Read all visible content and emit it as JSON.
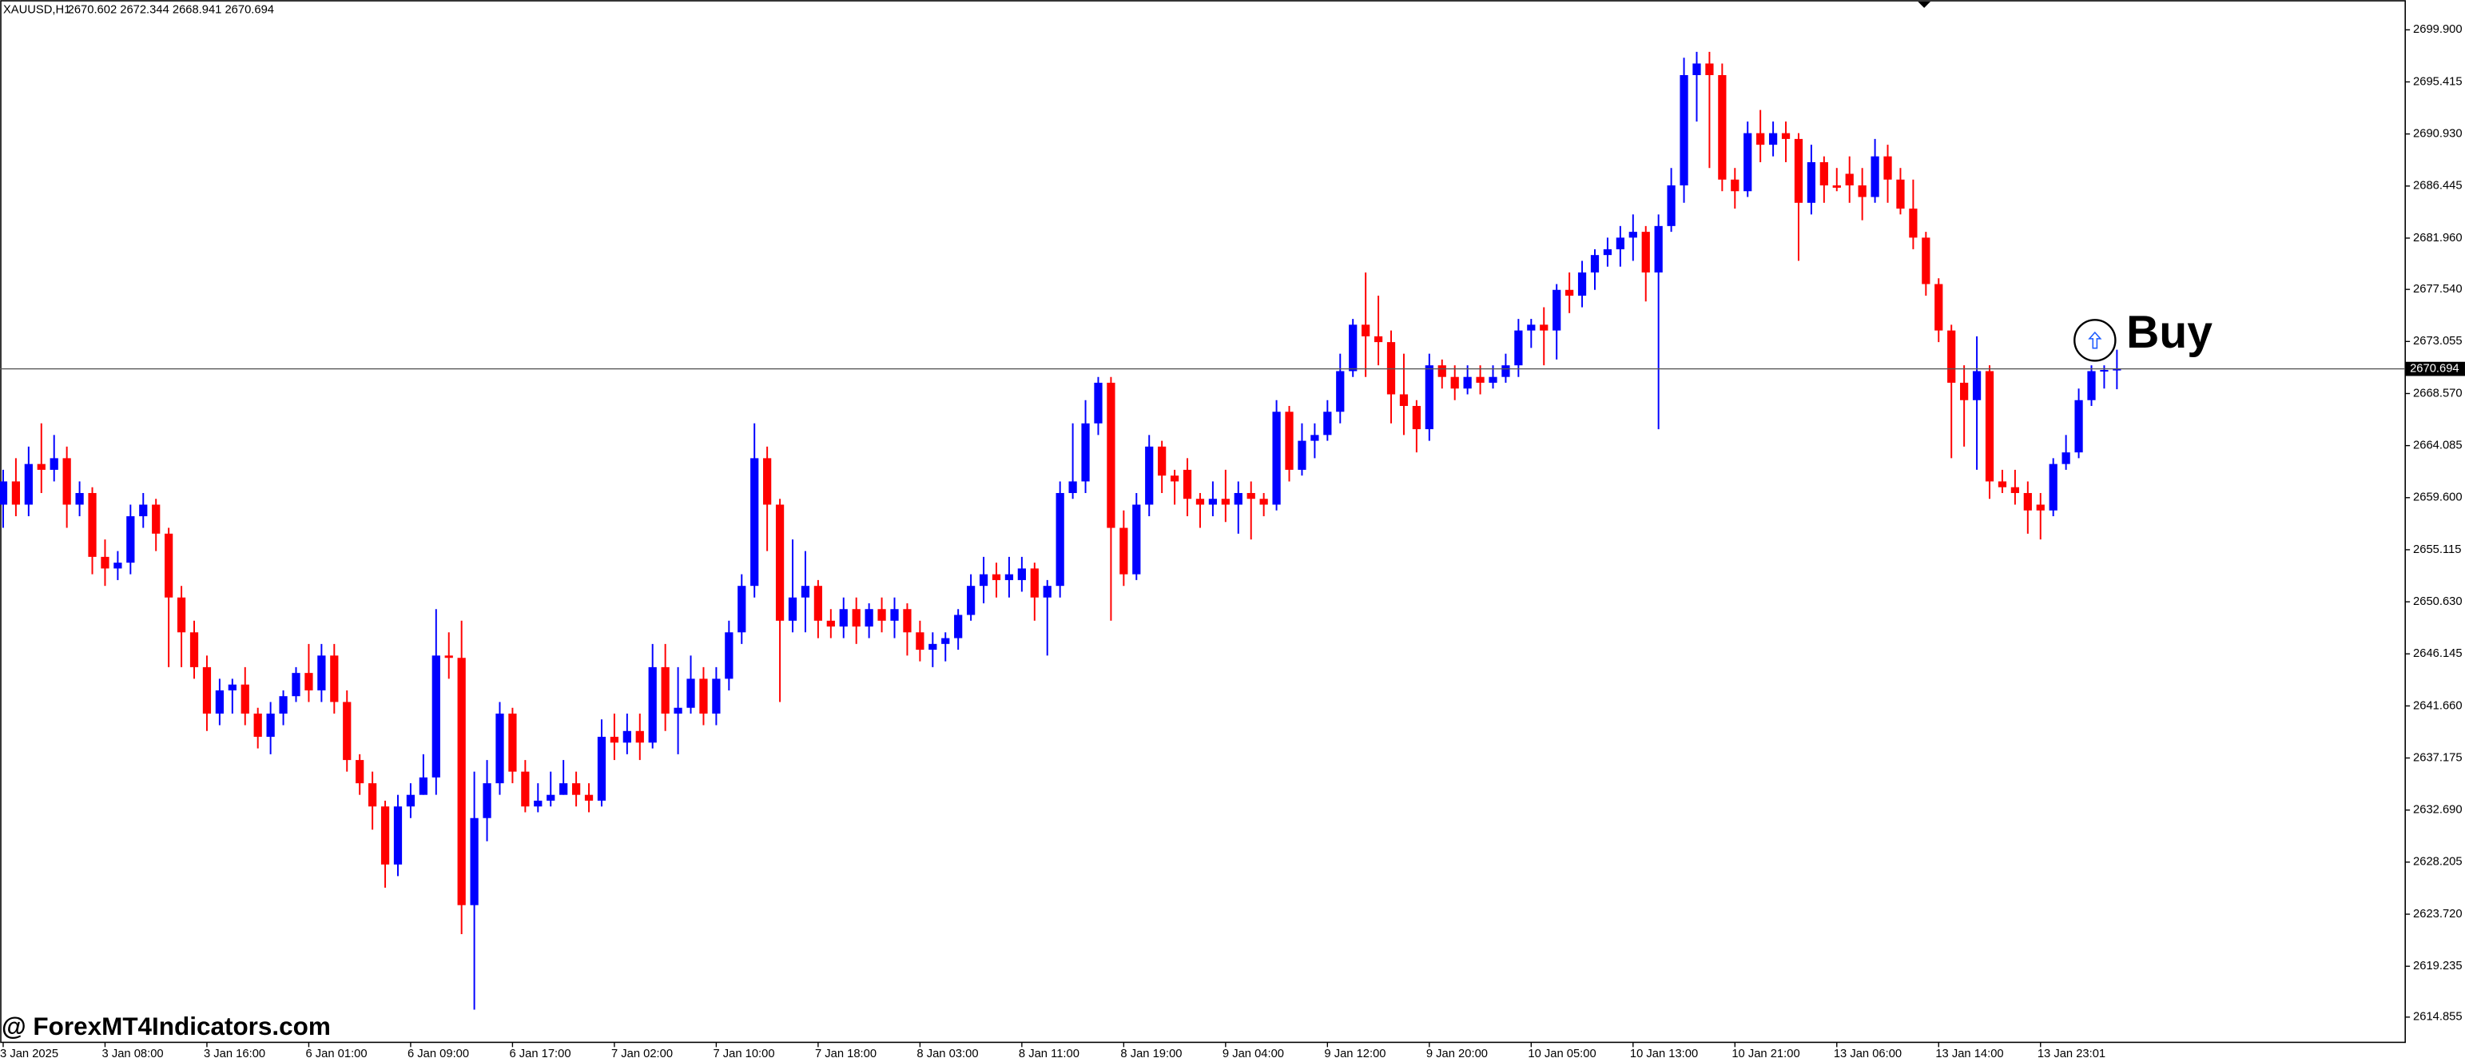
{
  "chart_data": {
    "type": "candlestick",
    "title": "XAUUSD,H1",
    "subtitle": "2670.602 2672.344 2668.941 2670.694",
    "watermark": "@ ForexMT4Indicators.com",
    "annotations": [
      {
        "text": "Buy"
      }
    ],
    "up_color": "#0000ff",
    "down_color": "#ff0000",
    "categories": [
      "3 Jan 2025",
      null,
      null,
      null,
      null,
      null,
      null,
      null,
      "3 Jan 08:00",
      null,
      null,
      null,
      null,
      null,
      null,
      null,
      "3 Jan 16:00",
      null,
      null,
      null,
      null,
      null,
      null,
      null,
      "6 Jan 01:00",
      null,
      null,
      null,
      null,
      null,
      null,
      null,
      "6 Jan 09:00",
      null,
      null,
      null,
      null,
      null,
      null,
      null,
      "6 Jan 17:00",
      null,
      null,
      null,
      null,
      null,
      null,
      null,
      "7 Jan 02:00",
      null,
      null,
      null,
      null,
      null,
      null,
      null,
      "7 Jan 10:00",
      null,
      null,
      null,
      null,
      null,
      null,
      null,
      "7 Jan 18:00",
      null,
      null,
      null,
      null,
      null,
      null,
      null,
      "8 Jan 03:00",
      null,
      null,
      null,
      null,
      null,
      null,
      null,
      "8 Jan 11:00",
      null,
      null,
      null,
      null,
      null,
      null,
      null,
      "8 Jan 19:00",
      null,
      null,
      null,
      null,
      null,
      null,
      null,
      "9 Jan 04:00",
      null,
      null,
      null,
      null,
      null,
      null,
      null,
      "9 Jan 12:00",
      null,
      null,
      null,
      null,
      null,
      null,
      null,
      "9 Jan 20:00",
      null,
      null,
      null,
      null,
      null,
      null,
      null,
      "10 Jan 05:00",
      null,
      null,
      null,
      null,
      null,
      null,
      null,
      "10 Jan 13:00",
      null,
      null,
      null,
      null,
      null,
      null,
      null,
      "10 Jan 21:00",
      null,
      null,
      null,
      null,
      null,
      null,
      null,
      "13 Jan 06:00",
      null,
      null,
      null,
      null,
      null,
      null,
      null,
      "13 Jan 14:00",
      null,
      null,
      null,
      null,
      null,
      null,
      null,
      "13 Jan 23:01",
      null,
      null,
      null,
      null,
      null,
      null
    ],
    "open": [
      2659,
      2661,
      2659,
      2662.5,
      2662,
      2663,
      2659,
      2660,
      2654.5,
      2653.5,
      2654,
      2658,
      2659,
      2656.5,
      2651,
      2648,
      2645,
      2641,
      2643,
      2643.5,
      2641,
      2639,
      2641,
      2642.5,
      2644.5,
      2643,
      2646,
      2642,
      2637,
      2635,
      2633,
      2628,
      2633,
      2634,
      2635.5,
      2646,
      2645.8,
      2624.5,
      2632,
      2635,
      2641,
      2636,
      2633,
      2633.5,
      2634,
      2635,
      2634,
      2633.5,
      2639,
      2638.5,
      2639.5,
      2638.5,
      2645,
      2641,
      2641.5,
      2644,
      2641,
      2644,
      2648,
      2652,
      2663,
      2659,
      2649,
      2651,
      2652,
      2649,
      2648.5,
      2650,
      2648.5,
      2650,
      2649,
      2650,
      2648,
      2646.5,
      2647,
      2647.5,
      2649.5,
      2652,
      2653,
      2652.5,
      2652.5,
      2653.5,
      2651,
      2652,
      2660,
      2661,
      2666,
      2669.5,
      2657,
      2653,
      2659,
      2664,
      2661.5,
      2662,
      2659.5,
      2659,
      2659.5,
      2659,
      2660,
      2659.5,
      2659,
      2667,
      2662,
      2664.5,
      2665,
      2667,
      2670.5,
      2674.5,
      2673.5,
      2673,
      2668.5,
      2667.5,
      2665.5,
      2671,
      2670,
      2669,
      2670,
      2669.5,
      2670,
      2671,
      2674,
      2674.5,
      2674,
      2677.5,
      2677,
      2679,
      2680.5,
      2681,
      2682,
      2682.5,
      2679,
      2683,
      2686.5,
      2696,
      2697,
      2696,
      2687,
      2686,
      2691,
      2690,
      2691,
      2690.5,
      2685,
      2688.5,
      2686.5,
      2687.5,
      2686.5,
      2685.5,
      2689,
      2687,
      2684.5,
      2682,
      2678,
      2674,
      2669.5,
      2668,
      2670.5,
      2661,
      2660.5,
      2660,
      2659,
      2658.5,
      2662.5,
      2663.5,
      2668,
      2670.5,
      2670.602
    ],
    "high": [
      2662,
      2663,
      2664,
      2666,
      2665,
      2664,
      2661,
      2660.5,
      2656,
      2655,
      2659,
      2660,
      2659.5,
      2657,
      2652,
      2649,
      2646,
      2644,
      2644,
      2645,
      2641.5,
      2642,
      2643,
      2645,
      2647,
      2647,
      2647,
      2643,
      2637.5,
      2636,
      2633.5,
      2634,
      2635,
      2637.5,
      2650,
      2648,
      2649,
      2636,
      2637,
      2642,
      2641.5,
      2637,
      2635,
      2636,
      2637,
      2636,
      2635,
      2640.5,
      2641,
      2641,
      2641,
      2647,
      2647,
      2645,
      2646,
      2645,
      2645,
      2649,
      2653,
      2666,
      2664,
      2659.5,
      2656,
      2655,
      2652.5,
      2650,
      2651,
      2651,
      2650.5,
      2651,
      2651,
      2650.5,
      2649,
      2648,
      2648,
      2650,
      2653,
      2654.5,
      2654,
      2654.5,
      2654.5,
      2654,
      2652.5,
      2661,
      2666,
      2668,
      2670,
      2670,
      2658.5,
      2660,
      2665,
      2664.5,
      2662,
      2663,
      2660,
      2661,
      2662,
      2661,
      2661,
      2660,
      2668,
      2667.5,
      2666,
      2666,
      2668,
      2672,
      2675,
      2679,
      2677,
      2674,
      2672,
      2668,
      2672,
      2671.5,
      2671,
      2671,
      2671,
      2671,
      2672,
      2675,
      2675,
      2676,
      2678,
      2679,
      2680,
      2681,
      2682,
      2683,
      2684,
      2683,
      2684,
      2688,
      2697.5,
      2698,
      2698,
      2697,
      2688,
      2692,
      2693,
      2692,
      2692,
      2691,
      2690,
      2689,
      2688,
      2689,
      2688,
      2690.5,
      2690,
      2688,
      2687,
      2682.5,
      2678.5,
      2674.5,
      2671,
      2673.5,
      2671,
      2662,
      2662,
      2661,
      2660,
      2663,
      2665,
      2669,
      2671,
      2671,
      2672.344
    ],
    "low": [
      2657,
      2658,
      2658,
      2660,
      2661,
      2657,
      2658,
      2653,
      2652,
      2652.5,
      2653,
      2657,
      2655,
      2645,
      2645,
      2644,
      2639.5,
      2640,
      2641,
      2640,
      2638,
      2637.5,
      2640,
      2642,
      2642,
      2642,
      2641,
      2636,
      2634,
      2631,
      2626,
      2627,
      2632,
      2634,
      2634,
      2644,
      2622,
      2615.5,
      2630,
      2634,
      2635,
      2632.5,
      2632.5,
      2633,
      2634,
      2633,
      2632.5,
      2633,
      2637,
      2637.5,
      2637,
      2638,
      2639.5,
      2637.5,
      2641,
      2640,
      2640,
      2643,
      2647,
      2651,
      2655,
      2642,
      2648,
      2648,
      2647.5,
      2647.5,
      2647.5,
      2647,
      2647.5,
      2648,
      2647.5,
      2646,
      2645.5,
      2645,
      2645.5,
      2646.5,
      2649,
      2650.5,
      2651,
      2651,
      2651.5,
      2649,
      2646,
      2651,
      2659.5,
      2660,
      2665,
      2649,
      2652,
      2652.5,
      2658,
      2660,
      2659,
      2658,
      2657,
      2658,
      2657.5,
      2656.5,
      2656,
      2658,
      2658.5,
      2661,
      2661.5,
      2663,
      2664.5,
      2666,
      2670,
      2670,
      2671,
      2666,
      2665,
      2663.5,
      2664.5,
      2669,
      2668,
      2668.5,
      2668.5,
      2669,
      2669.5,
      2670,
      2672.5,
      2671,
      2671.5,
      2675.5,
      2676,
      2677.5,
      2679.5,
      2679.5,
      2680,
      2676.5,
      2665.5,
      2682.5,
      2685,
      2692,
      2688,
      2686,
      2684.5,
      2685.5,
      2688.5,
      2689,
      2688.5,
      2680,
      2684,
      2685,
      2686,
      2685,
      2683.5,
      2685,
      2685,
      2684,
      2681,
      2677,
      2673,
      2663,
      2664,
      2662,
      2659.5,
      2660,
      2659,
      2656.5,
      2656,
      2658,
      2662,
      2663,
      2667.5,
      2669,
      2668.941
    ],
    "close": [
      2661,
      2659,
      2662.5,
      2662,
      2663,
      2659,
      2660,
      2654.5,
      2653.5,
      2654,
      2658,
      2659,
      2656.5,
      2651,
      2648,
      2645,
      2641,
      2643,
      2643.5,
      2641,
      2639,
      2641,
      2642.5,
      2644.5,
      2643,
      2646,
      2642,
      2637,
      2635,
      2633,
      2628,
      2633,
      2634,
      2635.5,
      2646,
      2645.8,
      2624.5,
      2632,
      2635,
      2641,
      2636,
      2633,
      2633.5,
      2634,
      2635,
      2634,
      2633.5,
      2639,
      2638.5,
      2639.5,
      2638.5,
      2645,
      2641,
      2641.5,
      2644,
      2641,
      2644,
      2648,
      2652,
      2663,
      2659,
      2649,
      2651,
      2652,
      2649,
      2648.5,
      2650,
      2648.5,
      2650,
      2649,
      2650,
      2648,
      2646.5,
      2647,
      2647.5,
      2649.5,
      2652,
      2653,
      2652.5,
      2653,
      2653.5,
      2651,
      2652,
      2660,
      2661,
      2666,
      2669.5,
      2657,
      2653,
      2659,
      2664,
      2661.5,
      2661,
      2659.5,
      2659,
      2659.5,
      2659,
      2660,
      2659.5,
      2659,
      2667,
      2662,
      2664.5,
      2665,
      2667,
      2670.5,
      2674.5,
      2673.5,
      2673,
      2668.5,
      2667.5,
      2665.5,
      2671,
      2670,
      2669,
      2670,
      2669.5,
      2670,
      2671,
      2674,
      2674.5,
      2674,
      2677.5,
      2677,
      2679,
      2680.5,
      2681,
      2682,
      2682.5,
      2679,
      2683,
      2686.5,
      2696,
      2697,
      2696,
      2687,
      2686,
      2691,
      2690,
      2691,
      2690.5,
      2685,
      2688.5,
      2686.5,
      2686.3,
      2686.5,
      2685.5,
      2689,
      2687,
      2684.5,
      2682,
      2678,
      2674,
      2669.5,
      2668,
      2670.5,
      2661,
      2660.5,
      2660,
      2658.5,
      2658.5,
      2662.5,
      2663.5,
      2668,
      2670.5,
      2670.6,
      2670.694
    ],
    "current_price": {
      "value": 2670.694,
      "label": "2670.694"
    },
    "ylim": [
      2612.68,
      2702.47
    ],
    "yticks": [
      {
        "value": 2699.9,
        "label": "2699.900"
      },
      {
        "value": 2695.415,
        "label": "2695.415"
      },
      {
        "value": 2690.93,
        "label": "2690.930"
      },
      {
        "value": 2686.445,
        "label": "2686.445"
      },
      {
        "value": 2681.96,
        "label": "2681.960"
      },
      {
        "value": 2677.54,
        "label": "2677.540"
      },
      {
        "value": 2673.055,
        "label": "2673.055"
      },
      {
        "value": 2668.57,
        "label": "2668.570"
      },
      {
        "value": 2664.085,
        "label": "2664.085"
      },
      {
        "value": 2659.6,
        "label": "2659.600"
      },
      {
        "value": 2655.115,
        "label": "2655.115"
      },
      {
        "value": 2650.63,
        "label": "2650.630"
      },
      {
        "value": 2646.145,
        "label": "2646.145"
      },
      {
        "value": 2641.66,
        "label": "2641.660"
      },
      {
        "value": 2637.175,
        "label": "2637.175"
      },
      {
        "value": 2632.69,
        "label": "2632.690"
      },
      {
        "value": 2628.205,
        "label": "2628.205"
      },
      {
        "value": 2623.72,
        "label": "2623.720"
      },
      {
        "value": 2619.235,
        "label": "2619.235"
      },
      {
        "value": 2614.855,
        "label": "2614.855"
      }
    ]
  }
}
